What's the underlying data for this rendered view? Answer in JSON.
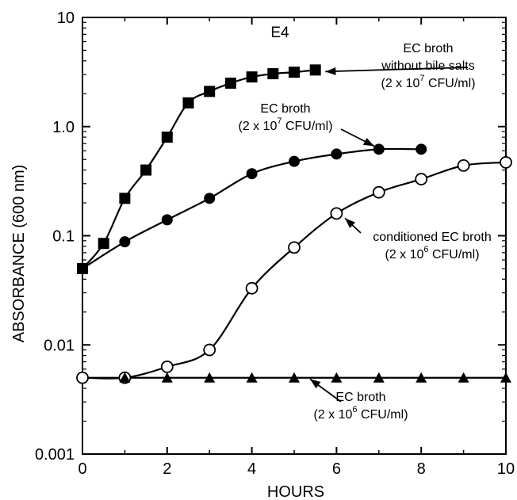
{
  "chart_data": {
    "type": "line",
    "panel_label": "E4",
    "xlabel": "HOURS",
    "ylabel": "ABSORBANCE  (600  nm)",
    "xlim": [
      0,
      10
    ],
    "ylim": [
      0.001,
      10
    ],
    "yscale": "log",
    "grid": false,
    "legend": "none",
    "x_ticks": [
      "0",
      "2",
      "4",
      "6",
      "8",
      "10"
    ],
    "y_ticks": [
      "0.001",
      "0.01",
      "0.1",
      "1.0",
      "10"
    ],
    "series": [
      {
        "marker": "filled-square",
        "x": [
          0,
          0.5,
          1,
          1.5,
          2,
          2.5,
          3,
          3.5,
          4,
          4.5,
          5,
          5.5
        ],
        "y": [
          0.05,
          0.085,
          0.22,
          0.4,
          0.8,
          1.65,
          2.1,
          2.5,
          2.85,
          3.05,
          3.15,
          3.3
        ]
      },
      {
        "marker": "filled-circle",
        "x": [
          0,
          1,
          2,
          3,
          4,
          5,
          6,
          7,
          8
        ],
        "y": [
          0.05,
          0.088,
          0.14,
          0.22,
          0.37,
          0.48,
          0.56,
          0.62,
          0.62
        ]
      },
      {
        "marker": "open-circle",
        "x": [
          0,
          1,
          2,
          3,
          4,
          5,
          6,
          7,
          8,
          9,
          10
        ],
        "y": [
          0.005,
          0.005,
          0.0063,
          0.009,
          0.033,
          0.078,
          0.16,
          0.25,
          0.33,
          0.44,
          0.47
        ]
      },
      {
        "marker": "filled-triangle",
        "x": [
          1,
          2,
          3,
          4,
          5,
          6,
          7,
          8,
          9,
          10
        ],
        "y": [
          0.005,
          0.005,
          0.005,
          0.005,
          0.005,
          0.005,
          0.005,
          0.005,
          0.005,
          0.005
        ]
      }
    ],
    "annotations": [
      {
        "lines": [
          "EC broth",
          "without bile salts"
        ],
        "conc_prefix": "(2 x 10",
        "exp": "7",
        "conc_suffix": "  CFU/ml)",
        "arrow_to": [
          5.55,
          3.3
        ]
      },
      {
        "lines": [
          "EC broth"
        ],
        "conc_prefix": "(2 x 10",
        "exp": "7",
        "conc_suffix": "  CFU/ml)",
        "arrow_to": [
          7.0,
          0.62
        ]
      },
      {
        "lines": [
          "conditioned EC broth"
        ],
        "conc_prefix": "(2 x 10",
        "exp": "6",
        "conc_suffix": "  CFU/ml)",
        "arrow_to": [
          6.05,
          0.16
        ]
      },
      {
        "lines": [
          "EC broth"
        ],
        "conc_prefix": "(2 x 10",
        "exp": "6",
        "conc_suffix": "  CFU/ml)",
        "arrow_to": [
          5.3,
          0.0052
        ]
      }
    ]
  }
}
